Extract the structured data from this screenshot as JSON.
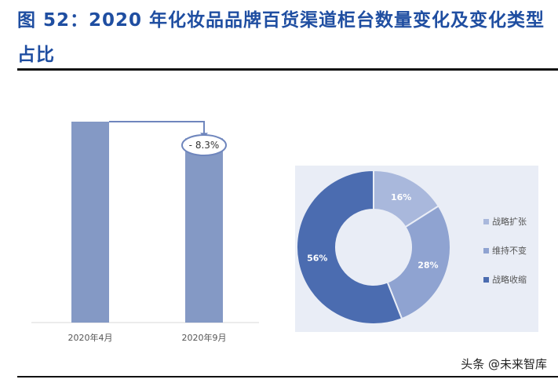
{
  "figure_title": "图 52：2020 年化妆品品牌百货渠道柜台数量变化及变化类型占比",
  "watermark": "头条 @未来智库",
  "chart_data": [
    {
      "type": "bar",
      "categories": [
        "2020年4月",
        "2020年9月"
      ],
      "values": [
        100,
        91.7
      ],
      "annotation": "- 8.3%",
      "color": "#8499c5"
    },
    {
      "type": "pie",
      "donut": true,
      "labels": [
        "战略扩张",
        "维持不变",
        "战略收缩"
      ],
      "values": [
        16,
        28,
        56
      ],
      "value_labels": [
        "16%",
        "28%",
        "56%"
      ],
      "colors": [
        "#a9b8dc",
        "#8fa3d1",
        "#4b6cb0"
      ],
      "legend_position": "right",
      "background": "#e9edf6"
    }
  ]
}
